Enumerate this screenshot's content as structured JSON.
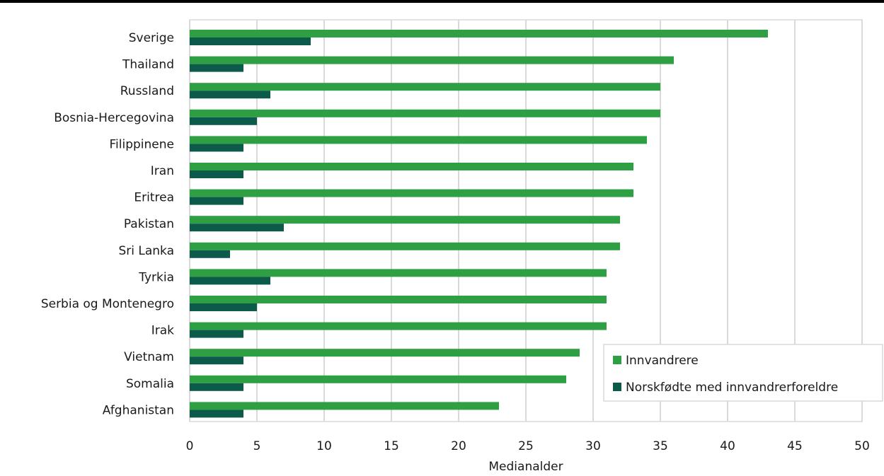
{
  "chart_data": {
    "type": "bar",
    "orientation": "horizontal",
    "categories": [
      "Sverige",
      "Thailand",
      "Russland",
      "Bosnia-Hercegovina",
      "Filippinene",
      "Iran",
      "Eritrea",
      "Pakistan",
      "Sri Lanka",
      "Tyrkia",
      "Serbia og Montenegro",
      "Irak",
      "Vietnam",
      "Somalia",
      "Afghanistan"
    ],
    "series": [
      {
        "name": "Innvandrere",
        "color": "#2ea043",
        "values": [
          43,
          36,
          35,
          35,
          34,
          33,
          33,
          32,
          32,
          31,
          31,
          31,
          29,
          28,
          23
        ]
      },
      {
        "name": "Norskfødte med innvandrerforeldre",
        "color": "#0b5a4a",
        "values": [
          9,
          4,
          6,
          5,
          4,
          4,
          4,
          7,
          3,
          6,
          5,
          4,
          4,
          4,
          4
        ]
      }
    ],
    "xlabel": "Medianalder",
    "xlim": [
      0,
      50
    ],
    "xticks": [
      0,
      5,
      10,
      15,
      20,
      25,
      30,
      35,
      40,
      45,
      50
    ],
    "grid": true,
    "legend_position": "bottom-right"
  }
}
